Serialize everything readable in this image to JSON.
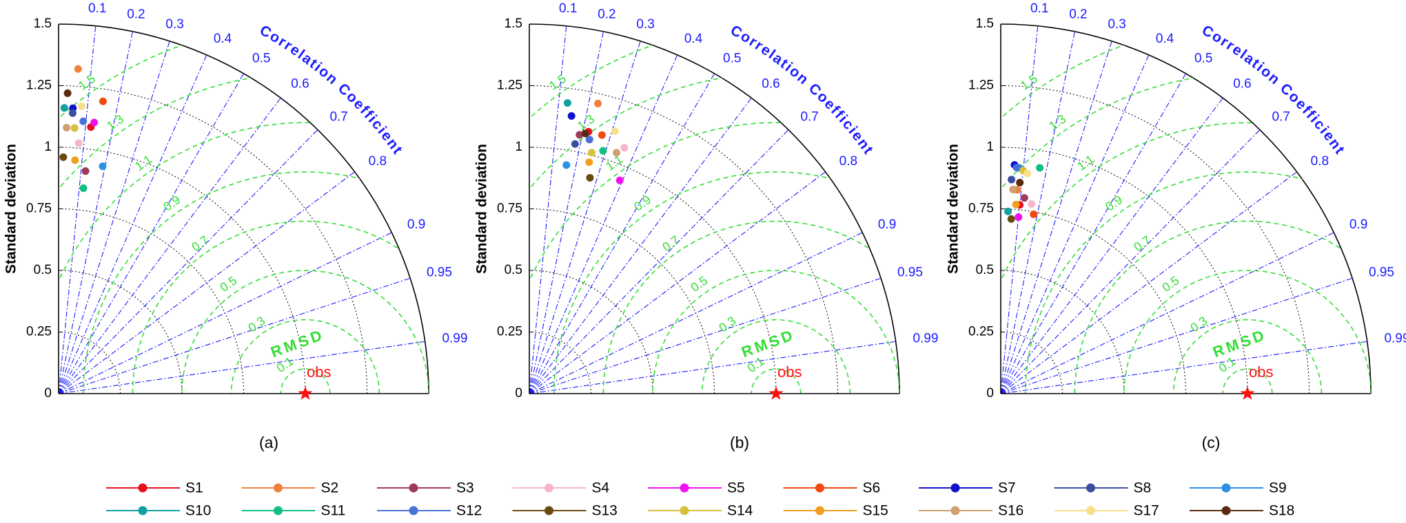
{
  "chart_data": [
    {
      "type": "taylor",
      "label": "(a)",
      "ylabel": "Standard deviation",
      "axis_title": "Correlation Coefficient",
      "rmsd_title": "RMSD",
      "ref_label": "obs",
      "ref_std": 1,
      "ylim": [
        0,
        1.5
      ],
      "yticks": [
        0,
        0.25,
        0.5,
        0.75,
        1,
        1.25,
        1.5
      ],
      "corr_ticks": [
        0.1,
        0.2,
        0.3,
        0.4,
        0.5,
        0.6,
        0.7,
        0.8,
        0.9,
        0.95,
        0.99
      ],
      "rmsd_ticks": [
        0.1,
        0.3,
        0.5,
        0.7,
        0.9,
        1.1,
        1.3,
        1.5
      ],
      "points": [
        {
          "std": 1.09,
          "corr": 0.12
        },
        {
          "std": 1.32,
          "corr": 0.06
        },
        {
          "std": 0.91,
          "corr": 0.12
        },
        {
          "std": 1.02,
          "corr": 0.08
        },
        {
          "std": 1.11,
          "corr": 0.13
        },
        {
          "std": 1.2,
          "corr": 0.15
        },
        {
          "std": 1.16,
          "corr": 0.05
        },
        {
          "std": 1.14,
          "corr": 0.05
        },
        {
          "std": 0.94,
          "corr": 0.19
        },
        {
          "std": 1.16,
          "corr": 0.02
        },
        {
          "std": 0.84,
          "corr": 0.12
        },
        {
          "std": 1.11,
          "corr": 0.09
        },
        {
          "std": 0.96,
          "corr": 0.02
        },
        {
          "std": 1.08,
          "corr": 0.06
        },
        {
          "std": 0.95,
          "corr": 0.07
        },
        {
          "std": 1.08,
          "corr": 0.03
        },
        {
          "std": 1.17,
          "corr": 0.08
        },
        {
          "std": 1.22,
          "corr": 0.03
        }
      ]
    },
    {
      "type": "taylor",
      "label": "(b)",
      "ylabel": "Standard deviation",
      "axis_title": "Correlation Coefficient",
      "rmsd_title": "RMSD",
      "ref_label": "obs",
      "ref_std": 1,
      "ylim": [
        0,
        1.5
      ],
      "yticks": [
        0,
        0.25,
        0.5,
        0.75,
        1,
        1.25,
        1.5
      ],
      "corr_ticks": [
        0.1,
        0.2,
        0.3,
        0.4,
        0.5,
        0.6,
        0.7,
        0.8,
        0.9,
        0.95,
        0.99
      ],
      "rmsd_ticks": [
        0.1,
        0.3,
        0.5,
        0.7,
        0.9,
        1.1,
        1.3,
        1.5
      ],
      "points": [
        {
          "std": 1.09,
          "corr": 0.22
        },
        {
          "std": 1.21,
          "corr": 0.23
        },
        {
          "std": 1.07,
          "corr": 0.19
        },
        {
          "std": 1.07,
          "corr": 0.36
        },
        {
          "std": 0.94,
          "corr": 0.39
        },
        {
          "std": 1.09,
          "corr": 0.27
        },
        {
          "std": 1.14,
          "corr": 0.15
        },
        {
          "std": 1.03,
          "corr": 0.18
        },
        {
          "std": 0.94,
          "corr": 0.16
        },
        {
          "std": 1.19,
          "corr": 0.13
        },
        {
          "std": 1.03,
          "corr": 0.29
        },
        {
          "std": 1.06,
          "corr": 0.23
        },
        {
          "std": 0.91,
          "corr": 0.27
        },
        {
          "std": 1.01,
          "corr": 0.25
        },
        {
          "std": 0.97,
          "corr": 0.25
        },
        {
          "std": 1.04,
          "corr": 0.34
        },
        {
          "std": 1.12,
          "corr": 0.31
        },
        {
          "std": 1.08,
          "corr": 0.21
        }
      ]
    },
    {
      "type": "taylor",
      "label": "(c)",
      "ylabel": "Standard deviation",
      "axis_title": "Correlation Coefficient",
      "rmsd_title": "RMSD",
      "ref_label": "obs",
      "ref_std": 1,
      "ylim": [
        0,
        1.5
      ],
      "yticks": [
        0,
        0.25,
        0.5,
        0.75,
        1,
        1.25,
        1.5
      ],
      "corr_ticks": [
        0.1,
        0.2,
        0.3,
        0.4,
        0.5,
        0.6,
        0.7,
        0.8,
        0.9,
        0.95,
        0.99
      ],
      "rmsd_ticks": [
        0.1,
        0.3,
        0.5,
        0.7,
        0.9,
        1.1,
        1.3,
        1.5
      ],
      "points": [
        {
          "std": 0.77,
          "corr": 0.1
        },
        {
          "std": 0.83,
          "corr": 0.08
        },
        {
          "std": 0.8,
          "corr": 0.12
        },
        {
          "std": 0.78,
          "corr": 0.16
        },
        {
          "std": 0.72,
          "corr": 0.1
        },
        {
          "std": 0.74,
          "corr": 0.18
        },
        {
          "std": 0.93,
          "corr": 0.06
        },
        {
          "std": 0.87,
          "corr": 0.05
        },
        {
          "std": 0.92,
          "corr": 0.08
        },
        {
          "std": 0.74,
          "corr": 0.04
        },
        {
          "std": 0.93,
          "corr": 0.17
        },
        {
          "std": 0.92,
          "corr": 0.07
        },
        {
          "std": 0.71,
          "corr": 0.06
        },
        {
          "std": 0.91,
          "corr": 0.1
        },
        {
          "std": 0.77,
          "corr": 0.08
        },
        {
          "std": 0.83,
          "corr": 0.06
        },
        {
          "std": 0.9,
          "corr": 0.12
        },
        {
          "std": 0.86,
          "corr": 0.09
        }
      ]
    }
  ],
  "legend": {
    "series": [
      {
        "name": "S1",
        "color": "#e8101a"
      },
      {
        "name": "S2",
        "color": "#f08040"
      },
      {
        "name": "S3",
        "color": "#9e3a5a"
      },
      {
        "name": "S4",
        "color": "#f7b6c8"
      },
      {
        "name": "S5",
        "color": "#f010f0"
      },
      {
        "name": "S6",
        "color": "#f04a10"
      },
      {
        "name": "S7",
        "color": "#1010d0"
      },
      {
        "name": "S8",
        "color": "#3a4fa0"
      },
      {
        "name": "S9",
        "color": "#2a90e8"
      },
      {
        "name": "S10",
        "color": "#10a0a0"
      },
      {
        "name": "S11",
        "color": "#10c080"
      },
      {
        "name": "S12",
        "color": "#4a70d8"
      },
      {
        "name": "S13",
        "color": "#6a4a10"
      },
      {
        "name": "S14",
        "color": "#d8c040"
      },
      {
        "name": "S15",
        "color": "#f0a020"
      },
      {
        "name": "S16",
        "color": "#d0a070"
      },
      {
        "name": "S17",
        "color": "#f8e08a"
      },
      {
        "name": "S18",
        "color": "#5a2a10"
      }
    ]
  }
}
